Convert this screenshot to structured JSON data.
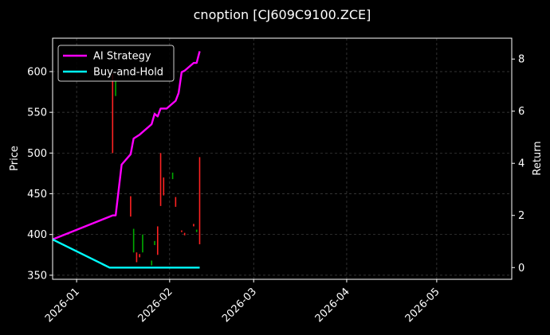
{
  "chart_data": {
    "type": "line",
    "title": "cnoption [CJ609C9100.ZCE]",
    "ylabel_left": "Price",
    "ylabel_right": "Return",
    "xlim": [
      "2025-12-24",
      "2026-05-26"
    ],
    "ylim_left": [
      345,
      641
    ],
    "ylim_right": [
      -0.45,
      8.8
    ],
    "x_ticks": [
      "2026-01-01",
      "2026-02-01",
      "2026-03-01",
      "2026-04-01",
      "2026-05-01"
    ],
    "x_tick_labels": [
      "2026-01",
      "2026-02",
      "2026-03",
      "2026-04",
      "2026-05"
    ],
    "y_ticks_left": [
      350,
      400,
      450,
      500,
      550,
      600
    ],
    "y_ticks_right": [
      0,
      2,
      4,
      6,
      8
    ],
    "grid": true,
    "legend_position": "top-left",
    "colors": {
      "background": "#000000",
      "text": "#ffffff",
      "grid": "#444444",
      "up": "#00aa00",
      "down": "#ff2222",
      "ai_strategy": "#ff00ff",
      "buy_and_hold": "#00ffff"
    },
    "series": [
      {
        "name": "AI Strategy",
        "axis": "right",
        "points": [
          {
            "x": "2025-12-24",
            "y": 1.08
          },
          {
            "x": "2026-01-13",
            "y": 2.0
          },
          {
            "x": "2026-01-14",
            "y": 2.0
          },
          {
            "x": "2026-01-16",
            "y": 3.95
          },
          {
            "x": "2026-01-19",
            "y": 4.35
          },
          {
            "x": "2026-01-20",
            "y": 4.95
          },
          {
            "x": "2026-01-22",
            "y": 5.1
          },
          {
            "x": "2026-01-26",
            "y": 5.5
          },
          {
            "x": "2026-01-27",
            "y": 5.9
          },
          {
            "x": "2026-01-28",
            "y": 5.8
          },
          {
            "x": "2026-01-29",
            "y": 6.1
          },
          {
            "x": "2026-01-31",
            "y": 6.1
          },
          {
            "x": "2026-02-03",
            "y": 6.4
          },
          {
            "x": "2026-02-04",
            "y": 6.7
          },
          {
            "x": "2026-02-05",
            "y": 7.5
          },
          {
            "x": "2026-02-06",
            "y": 7.55
          },
          {
            "x": "2026-02-09",
            "y": 7.85
          },
          {
            "x": "2026-02-10",
            "y": 7.85
          },
          {
            "x": "2026-02-11",
            "y": 8.3
          }
        ]
      },
      {
        "name": "Buy-and-Hold",
        "axis": "right",
        "points": [
          {
            "x": "2025-12-24",
            "y": 1.08
          },
          {
            "x": "2026-01-12",
            "y": 0.0
          },
          {
            "x": "2026-02-11",
            "y": 0.0
          }
        ]
      }
    ],
    "candles": [
      {
        "x": "2026-01-13",
        "low": 500,
        "high": 597
      },
      {
        "x": "2026-01-14",
        "low": 570,
        "high": 588,
        "up": true
      },
      {
        "x": "2026-01-19",
        "low": 422,
        "high": 447
      },
      {
        "x": "2026-01-20",
        "low": 378,
        "high": 407,
        "up": true
      },
      {
        "x": "2026-01-21",
        "low": 366,
        "high": 378
      },
      {
        "x": "2026-01-22",
        "low": 372,
        "high": 376
      },
      {
        "x": "2026-01-23",
        "low": 378,
        "high": 400,
        "up": true
      },
      {
        "x": "2026-01-26",
        "low": 362,
        "high": 368,
        "up": true
      },
      {
        "x": "2026-01-27",
        "low": 387,
        "high": 392,
        "up": true
      },
      {
        "x": "2026-01-28",
        "low": 375,
        "high": 410
      },
      {
        "x": "2026-01-29",
        "low": 435,
        "high": 500
      },
      {
        "x": "2026-01-30",
        "low": 448,
        "high": 470
      },
      {
        "x": "2026-02-02",
        "low": 468,
        "high": 476,
        "up": true
      },
      {
        "x": "2026-02-03",
        "low": 434,
        "high": 446
      },
      {
        "x": "2026-02-05",
        "low": 403,
        "high": 405
      },
      {
        "x": "2026-02-06",
        "low": 399,
        "high": 402
      },
      {
        "x": "2026-02-09",
        "low": 410,
        "high": 413
      },
      {
        "x": "2026-02-10",
        "low": 403,
        "high": 406,
        "up": true
      },
      {
        "x": "2026-02-11",
        "low": 388,
        "high": 495
      }
    ]
  }
}
